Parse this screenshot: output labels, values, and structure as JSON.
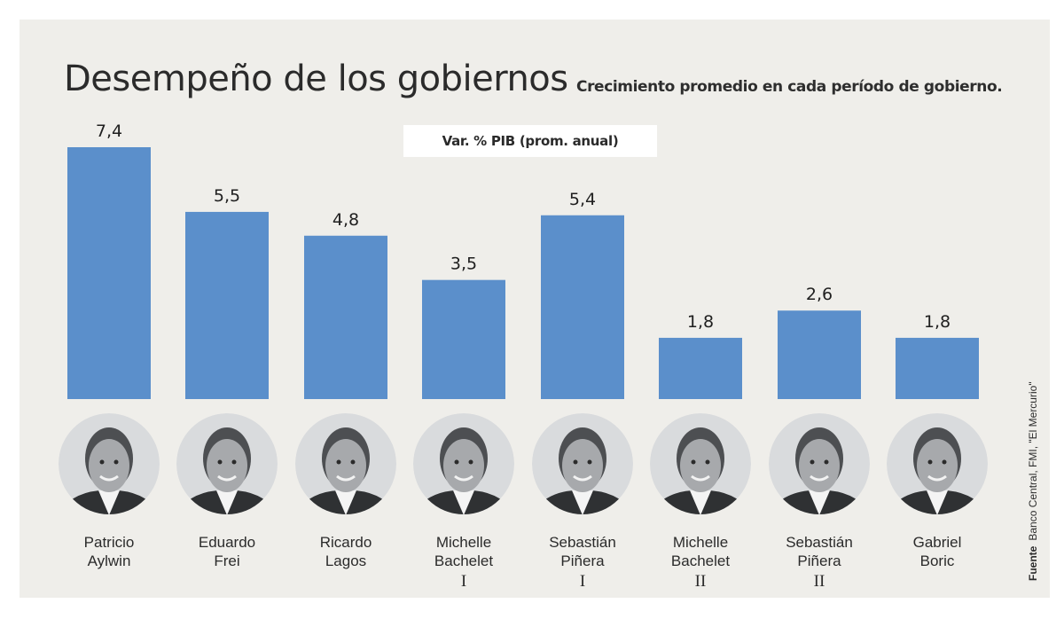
{
  "title": "Desempeño de los gobiernos",
  "subtitle": "Crecimiento promedio en cada período de gobierno.",
  "unit_label": "Var. % PIB (prom. anual)",
  "source": {
    "label": "Fuente",
    "text": "Banco Central, FMI, \"El Mercurio\""
  },
  "colors": {
    "bar": "#5b8fcb",
    "background": "#efeeea"
  },
  "chart_data": {
    "type": "bar",
    "title": "Desempeño de los gobiernos",
    "subtitle": "Crecimiento promedio en cada período de gobierno.",
    "ylabel": "Var. % PIB (prom. anual)",
    "xlabel": "",
    "ylim": [
      0,
      7.4
    ],
    "grid": false,
    "categories": [
      "Patricio Aylwin",
      "Eduardo Frei",
      "Ricardo Lagos",
      "Michelle Bachelet I",
      "Sebastián Piñera I",
      "Michelle Bachelet II",
      "Sebastián Piñera II",
      "Gabriel Boric"
    ],
    "values": [
      7.4,
      5.5,
      4.8,
      3.5,
      5.4,
      1.8,
      2.6,
      1.8
    ],
    "value_labels": [
      "7,4",
      "5,5",
      "4,8",
      "3,5",
      "5,4",
      "1,8",
      "2,6",
      "1,8"
    ],
    "name_lines": [
      [
        "Patricio",
        "Aylwin"
      ],
      [
        "Eduardo",
        "Frei"
      ],
      [
        "Ricardo",
        "Lagos"
      ],
      [
        "Michelle",
        "Bachelet"
      ],
      [
        "Sebastián",
        "Piñera"
      ],
      [
        "Michelle",
        "Bachelet"
      ],
      [
        "Sebastián",
        "Piñera"
      ],
      [
        "Gabriel",
        "Boric"
      ]
    ],
    "roman": [
      "",
      "",
      "",
      "I",
      "I",
      "II",
      "II",
      ""
    ]
  }
}
